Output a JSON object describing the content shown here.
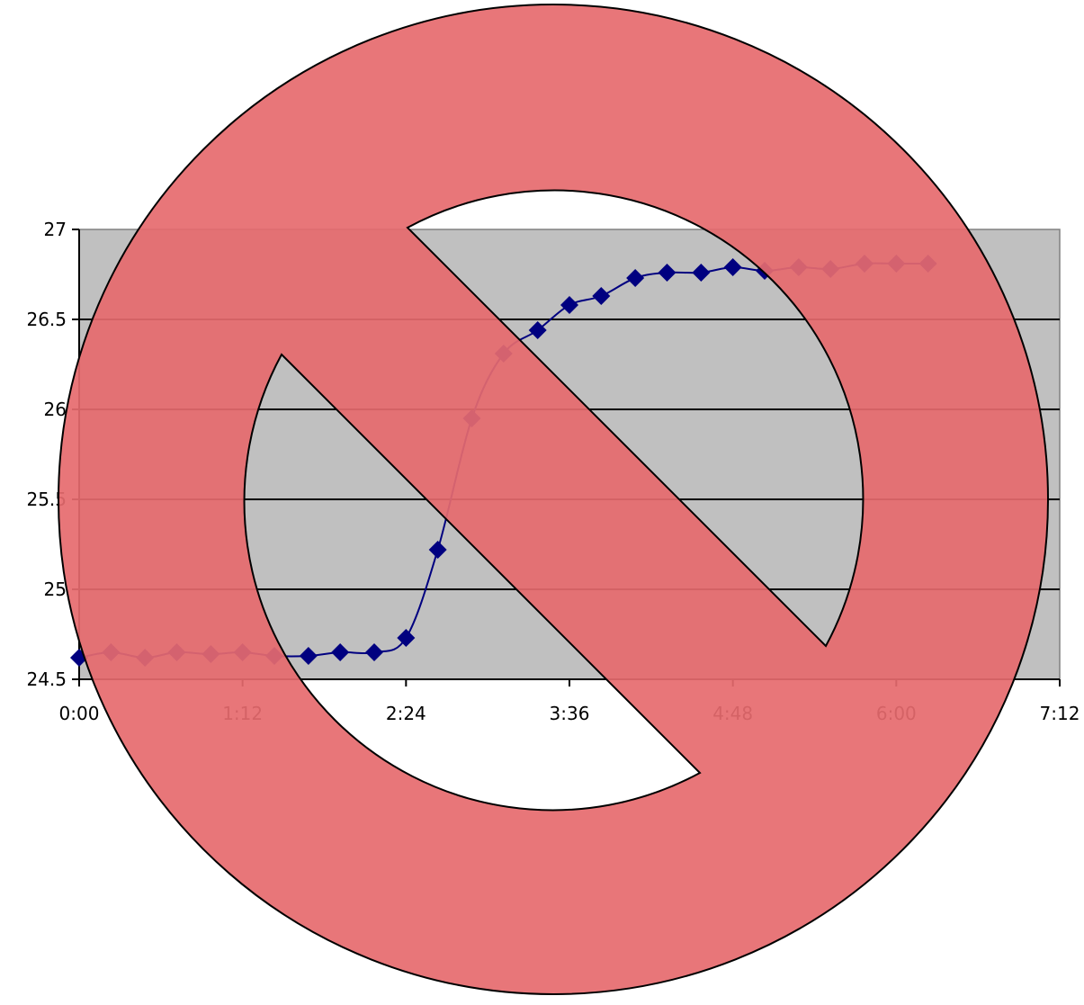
{
  "chart_data": {
    "type": "line",
    "title": "",
    "xlabel": "",
    "ylabel": "",
    "x_ticks": [
      "0:00",
      "1:12",
      "2:24",
      "3:36",
      "4:48",
      "6:00",
      "7:12"
    ],
    "y_ticks": [
      "24.5",
      "25",
      "25.5",
      "26",
      "26.5",
      "27"
    ],
    "xlim": [
      "0:00",
      "7:12"
    ],
    "ylim": [
      24.5,
      27
    ],
    "grid": "horizontal gridlines at 25, 25.5, 26, 26.5",
    "plot_background": "#c0c0c0",
    "series": [
      {
        "color": "#000080",
        "x": [
          "0:00",
          "0:14",
          "0:29",
          "0:43",
          "0:58",
          "1:12",
          "1:26",
          "1:41",
          "1:55",
          "2:10",
          "2:24",
          "2:38",
          "2:53",
          "3:07",
          "3:22",
          "3:36",
          "3:50",
          "4:05",
          "4:19",
          "4:34",
          "4:48",
          "5:02",
          "5:17",
          "5:31",
          "5:46",
          "6:00",
          "6:14"
        ],
        "values": [
          24.62,
          24.65,
          24.62,
          24.65,
          24.64,
          24.65,
          24.63,
          24.63,
          24.65,
          24.65,
          24.73,
          25.22,
          25.95,
          26.31,
          26.44,
          26.58,
          26.63,
          26.73,
          26.76,
          26.76,
          26.79,
          26.77,
          26.79,
          26.78,
          26.81,
          26.81,
          26.81
        ]
      }
    ]
  },
  "overlay": {
    "type": "prohibition-sign",
    "fill_color": "#e66a6e",
    "stroke_color": "#000000"
  }
}
